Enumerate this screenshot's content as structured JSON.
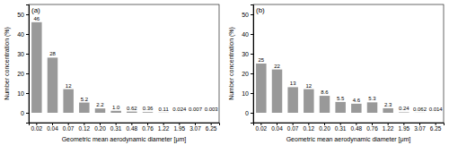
{
  "chart_data": [
    {
      "type": "bar",
      "title": "(a)",
      "xlabel": "Geometric mean aerodynamic diameter [μm]",
      "ylabel": "Number concentration (%)",
      "categories": [
        "0.02",
        "0.04",
        "0.07",
        "0.12",
        "0.20",
        "0.31",
        "0.48",
        "0.76",
        "1.22",
        "1.95",
        "3.07",
        "6.25"
      ],
      "values": [
        46,
        28,
        12,
        5.2,
        2.2,
        1.0,
        0.62,
        0.36,
        0.11,
        0.024,
        0.007,
        0.003
      ],
      "value_labels": [
        "46",
        "28",
        "12",
        "5.2",
        "2.2",
        "1.0",
        "0.62",
        "0.36",
        "0.11",
        "0.024",
        "0.007",
        "0.003"
      ],
      "data_labels": true,
      "color": "#999999",
      "ylim": [
        -5,
        55
      ],
      "yticks": [
        0,
        10,
        20,
        30,
        40,
        50
      ]
    },
    {
      "type": "bar",
      "title": "(b)",
      "xlabel": "Geometric mean aerodynamic diameter [μm]",
      "ylabel": "Number concentration (%)",
      "categories": [
        "0.02",
        "0.04",
        "0.07",
        "0.12",
        "0.20",
        "0.31",
        "0.48",
        "0.76",
        "1.22",
        "1.95",
        "3.07",
        "6.25"
      ],
      "values": [
        25,
        22,
        13,
        12,
        8.6,
        5.5,
        4.6,
        5.3,
        2.3,
        0.24,
        0.062,
        0.014
      ],
      "value_labels": [
        "25",
        "22",
        "13",
        "12",
        "8.6",
        "5.5",
        "4.6",
        "5.3",
        "2.3",
        "0.24",
        "0.062",
        "0.014"
      ],
      "data_labels": true,
      "color": "#999999",
      "ylim": [
        -5,
        55
      ],
      "yticks": [
        0,
        10,
        20,
        30,
        40,
        50
      ]
    }
  ]
}
